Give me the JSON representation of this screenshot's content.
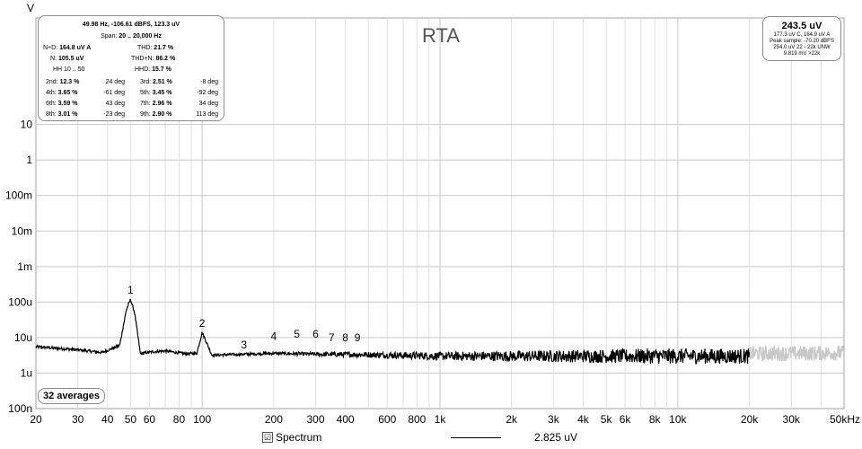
{
  "chart_data": {
    "type": "line",
    "title": "RTA",
    "ylabel": "V",
    "xlabel": "",
    "x_scale": "log",
    "y_scale": "log",
    "xlim": [
      20,
      50000
    ],
    "ylim": [
      1e-10,
      10
    ],
    "x_ticks": [
      {
        "v": 20,
        "t": "20"
      },
      {
        "v": 30,
        "t": "30"
      },
      {
        "v": 40,
        "t": "40"
      },
      {
        "v": 50,
        "t": "50"
      },
      {
        "v": 60,
        "t": "60"
      },
      {
        "v": 80,
        "t": "80"
      },
      {
        "v": 100,
        "t": "100"
      },
      {
        "v": 200,
        "t": "200"
      },
      {
        "v": 300,
        "t": "300"
      },
      {
        "v": 400,
        "t": "400"
      },
      {
        "v": 600,
        "t": "600"
      },
      {
        "v": 800,
        "t": "800"
      },
      {
        "v": 1000,
        "t": "1k"
      },
      {
        "v": 2000,
        "t": "2k"
      },
      {
        "v": 3000,
        "t": "3k"
      },
      {
        "v": 4000,
        "t": "4k"
      },
      {
        "v": 5000,
        "t": "5k"
      },
      {
        "v": 6000,
        "t": "6k"
      },
      {
        "v": 8000,
        "t": "8k"
      },
      {
        "v": 10000,
        "t": "10k"
      },
      {
        "v": 20000,
        "t": "20k"
      },
      {
        "v": 30000,
        "t": "30k"
      },
      {
        "v": 50000,
        "t": "50kHz"
      }
    ],
    "y_ticks": [
      {
        "v": 1e-10,
        "t": "100n"
      },
      {
        "v": 1e-09,
        "t": "1u"
      },
      {
        "v": 1e-08,
        "t": "10u"
      },
      {
        "v": 1e-07,
        "t": "100u"
      },
      {
        "v": 1e-06,
        "t": "1m"
      },
      {
        "v": 1e-05,
        "t": "10m"
      },
      {
        "v": 0.0001,
        "t": "100m"
      },
      {
        "v": 0.001,
        "t": "1"
      },
      {
        "v": 0.01,
        "t": "10"
      }
    ],
    "series": [
      {
        "name": "Spectrum",
        "color": "#000000",
        "x": [
          20,
          30,
          38,
          45,
          48,
          49.98,
          52,
          55,
          62,
          70,
          85,
          95,
          100,
          110,
          150,
          200,
          300,
          500,
          1000,
          3000,
          10000,
          20000
        ],
        "y": [
          5.5e-09,
          4.5e-09,
          3.8e-09,
          6e-09,
          6e-08,
          1.2e-07,
          5e-08,
          3.5e-09,
          4e-09,
          4.2e-09,
          3.5e-09,
          3.6e-09,
          1.4e-08,
          3.2e-09,
          3.4e-09,
          3.6e-09,
          3.4e-09,
          3.3e-09,
          3e-09,
          3e-09,
          3e-09,
          3e-09
        ]
      },
      {
        "name": "",
        "color": "#c8c8c8",
        "x": [
          20000,
          30000,
          50000
        ],
        "y": [
          3.5e-09,
          3.6e-09,
          3.7e-09
        ]
      }
    ],
    "annotations": [
      {
        "t": "1",
        "x": 49.98,
        "y": 1.2e-07
      },
      {
        "t": "2",
        "x": 100,
        "y": 1.4e-08
      },
      {
        "t": "3",
        "x": 150,
        "y": 3.5e-09
      },
      {
        "t": "4",
        "x": 200,
        "y": 6e-09
      },
      {
        "t": "5",
        "x": 250,
        "y": 7e-09
      },
      {
        "t": "6",
        "x": 300,
        "y": 7e-09
      },
      {
        "t": "7",
        "x": 350,
        "y": 5.5e-09
      },
      {
        "t": "8",
        "x": 400,
        "y": 5.5e-09
      },
      {
        "t": "9",
        "x": 450,
        "y": 5.5e-09
      }
    ],
    "grid": true,
    "legend": "bottom"
  },
  "stats": {
    "header1": "49.98 Hz, -106.61 dBFS, 123.3 uV",
    "header2_prefix": "Span: ",
    "header2_bold": "20 .. 20,000 Hz",
    "nd_label": "N+D:",
    "nd_value": "164.8 uV A",
    "thd_label": "THD:",
    "thd_value": "21.7 %",
    "n_label": "N:",
    "n_value": "105.5 uV",
    "thdn_label": "THD+N:",
    "thdn_value": "86.2 %",
    "hh_label": "HH 10 .. 50",
    "hhd_label": "HHD:",
    "hhd_value": "15.7 %",
    "harmonics": [
      {
        "label": "2nd:",
        "value": "12.3 %",
        "phase": "24 deg"
      },
      {
        "label": "3rd:",
        "value": "2.51 %",
        "phase": "-8 deg"
      },
      {
        "label": "4th:",
        "value": "3.65 %",
        "phase": "-61 deg"
      },
      {
        "label": "5th:",
        "value": "3.45 %",
        "phase": "-92 deg"
      },
      {
        "label": "6th:",
        "value": "3.59 %",
        "phase": "43 deg"
      },
      {
        "label": "7th:",
        "value": "2.96 %",
        "phase": "34 deg"
      },
      {
        "label": "8th:",
        "value": "3.01 %",
        "phase": "-23 deg"
      },
      {
        "label": "9th:",
        "value": "2.90 %",
        "phase": "113 deg"
      }
    ]
  },
  "summary": {
    "main": "243.5 uV",
    "line1": "177.3 uV C, 164.9 uV A",
    "line2": "Peak sample: -70.20 dBFS",
    "line3": "254.0 uV 22 - 22k UNW",
    "line4": "9.819 mV >22k"
  },
  "averages": "32 averages",
  "legend": {
    "checkbox_mark": "☑",
    "spectrum_label": "Spectrum",
    "value": "2.825 uV"
  }
}
